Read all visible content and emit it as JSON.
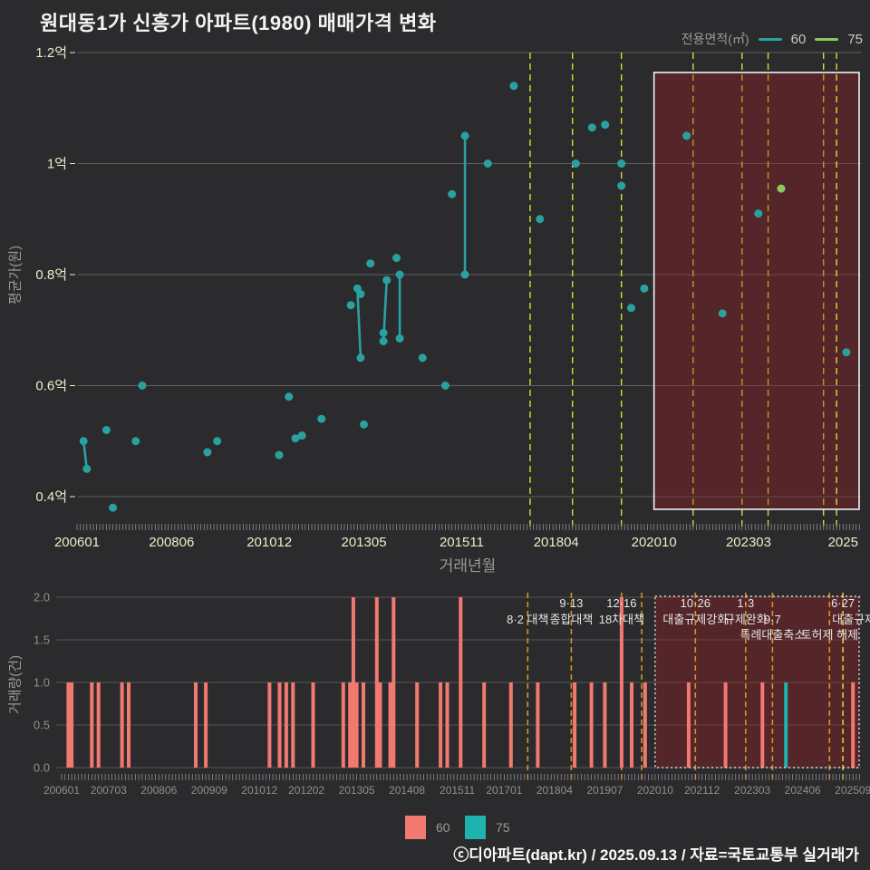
{
  "title": "원대동1가 신흥가 아파트(1980) 매매가격 변화",
  "legend_top": {
    "label": "전용면적(㎡)",
    "items": [
      {
        "name": "60",
        "color": "#2aa1a1"
      },
      {
        "name": "75",
        "color": "#8bc95c"
      }
    ]
  },
  "legend_bottom": {
    "items": [
      {
        "name": "60",
        "color": "#f2796f"
      },
      {
        "name": "75",
        "color": "#1eb3ae"
      }
    ]
  },
  "footer": "ⓒ디아파트(dapt.kr) / 2025.09.13 / 자료=국토교통부 실거래가",
  "chart_data": {
    "price_chart": {
      "type": "scatter",
      "ylabel": "평균가(원)",
      "xlabel": "거래년월",
      "ylim": [
        0.35,
        1.21
      ],
      "unit": "억",
      "grid": true,
      "yticks": [
        {
          "v": 1.2,
          "label": "1.2억"
        },
        {
          "v": 1.0,
          "label": "1억"
        },
        {
          "v": 0.8,
          "label": "0.8억"
        },
        {
          "v": 0.6,
          "label": "0.6억"
        },
        {
          "v": 0.4,
          "label": "0.4억"
        }
      ],
      "xticks": [
        {
          "label": "200601",
          "at": "200601"
        },
        {
          "label": "200806",
          "at": "200806"
        },
        {
          "label": "201012",
          "at": "201012"
        },
        {
          "label": "201305",
          "at": "201305"
        },
        {
          "label": "201511",
          "at": "201511"
        },
        {
          "label": "201804",
          "at": "201804"
        },
        {
          "label": "202010",
          "at": "202010"
        },
        {
          "label": "202303",
          "at": "202303"
        },
        {
          "label": "2025",
          "at": "202508"
        }
      ],
      "series": [
        {
          "name": "60",
          "color": "#2aa1a1",
          "points": [
            [
              "200603",
              0.5
            ],
            [
              "200604",
              0.45
            ],
            [
              "200610",
              0.52
            ],
            [
              "200612",
              0.38
            ],
            [
              "200707",
              0.5
            ],
            [
              "200709",
              0.6
            ],
            [
              "200905",
              0.48
            ],
            [
              "200908",
              0.5
            ],
            [
              "201103",
              0.475
            ],
            [
              "201106",
              0.58
            ],
            [
              "201108",
              0.505
            ],
            [
              "201110",
              0.51
            ],
            [
              "201204",
              0.54
            ],
            [
              "201301",
              0.745
            ],
            [
              "201303",
              0.775
            ],
            [
              "201304",
              0.65
            ],
            [
              "201304",
              0.765
            ],
            [
              "201305",
              0.53
            ],
            [
              "201307",
              0.82
            ],
            [
              "201311",
              0.695
            ],
            [
              "201311",
              0.68
            ],
            [
              "201312",
              0.79
            ],
            [
              "201403",
              0.83
            ],
            [
              "201404",
              0.8
            ],
            [
              "201404",
              0.685
            ],
            [
              "201411",
              0.65
            ],
            [
              "201506",
              0.6
            ],
            [
              "201508",
              0.945
            ],
            [
              "201512",
              1.05
            ],
            [
              "201512",
              0.8
            ],
            [
              "201607",
              1.0
            ],
            [
              "201703",
              1.14
            ],
            [
              "201711",
              0.9
            ],
            [
              "201810",
              1.0
            ],
            [
              "201903",
              1.065
            ],
            [
              "201907",
              1.07
            ],
            [
              "201912",
              0.96
            ],
            [
              "201912",
              1.0
            ],
            [
              "202003",
              0.74
            ],
            [
              "202007",
              0.775
            ],
            [
              "202108",
              1.05
            ],
            [
              "202207",
              0.73
            ],
            [
              "202306",
              0.91
            ],
            [
              "202509",
              0.66
            ]
          ]
        },
        {
          "name": "75",
          "color": "#8bc95c",
          "points": [
            [
              "202401",
              0.955
            ]
          ]
        }
      ],
      "segments": [
        [
          "200603",
          0.5,
          "200604",
          0.45
        ],
        [
          "201303",
          0.775,
          "201304",
          0.65
        ],
        [
          "201312",
          0.79,
          "201311",
          0.68
        ],
        [
          "201404",
          0.8,
          "201404",
          0.685
        ],
        [
          "201512",
          1.05,
          "201512",
          0.8
        ]
      ]
    },
    "volume_chart": {
      "type": "bar",
      "ylabel": "거래량(건)",
      "ylim": [
        0,
        2
      ],
      "yticks": [
        "0.0",
        "0.5",
        "1.0",
        "1.5",
        "2.0"
      ],
      "xticks": [
        "200601",
        "200703",
        "200806",
        "200909",
        "201012",
        "201202",
        "201305",
        "201408",
        "201511",
        "201701",
        "201804",
        "201907",
        "202010",
        "202112",
        "202303",
        "202406",
        "202509"
      ],
      "bars": [
        [
          "200603",
          1
        ],
        [
          "200604",
          1
        ],
        [
          "200610",
          1
        ],
        [
          "200612",
          1
        ],
        [
          "200707",
          1
        ],
        [
          "200709",
          1
        ],
        [
          "200905",
          1
        ],
        [
          "200908",
          1
        ],
        [
          "201103",
          1
        ],
        [
          "201106",
          1
        ],
        [
          "201108",
          1
        ],
        [
          "201110",
          1
        ],
        [
          "201204",
          1
        ],
        [
          "201301",
          1
        ],
        [
          "201303",
          1
        ],
        [
          "201304",
          2
        ],
        [
          "201305",
          1
        ],
        [
          "201307",
          1
        ],
        [
          "201311",
          2
        ],
        [
          "201312",
          1
        ],
        [
          "201403",
          1
        ],
        [
          "201404",
          2
        ],
        [
          "201411",
          1
        ],
        [
          "201506",
          1
        ],
        [
          "201508",
          1
        ],
        [
          "201512",
          2
        ],
        [
          "201607",
          1
        ],
        [
          "201703",
          1
        ],
        [
          "201711",
          1
        ],
        [
          "201810",
          1
        ],
        [
          "201903",
          1
        ],
        [
          "201907",
          1
        ],
        [
          "201912",
          2
        ],
        [
          "202003",
          1
        ],
        [
          "202007",
          1
        ],
        [
          "202108",
          1
        ],
        [
          "202207",
          1
        ],
        [
          "202306",
          1
        ],
        [
          "202401",
          1,
          "75"
        ],
        [
          "202509",
          1
        ]
      ]
    },
    "policies": [
      {
        "date": "201708",
        "row2": "8·2 대책"
      },
      {
        "date": "201809",
        "row1": "9·13",
        "row2": "종합대책"
      },
      {
        "date": "201912",
        "row1": "12·16",
        "row2": "18차대책"
      },
      {
        "date": "202006",
        "hide_top": true
      },
      {
        "date": "202110",
        "row1": "10·26",
        "row2": "대출규제강화"
      },
      {
        "date": "202301",
        "row1": "1·3",
        "row2": "규제완화"
      },
      {
        "date": "202309",
        "row2": "9·7",
        "row3": "특례대출축소"
      },
      {
        "date": "202502",
        "row3": "토허제 해제"
      },
      {
        "date": "202506",
        "row1": "6·27",
        "row2": "대출규제",
        "bright": true,
        "dx": 12
      }
    ],
    "highlight_box": {
      "from": "202010"
    },
    "colors": {
      "dashed_top": "#dcdc30",
      "dashed_bottom": "#d29422",
      "dashed_bright": "#d8d232",
      "box_fill": "rgba(158,28,36,0.36)",
      "box_border_top": "#f2f2f2",
      "box_border_bottom": "#d8d8d8",
      "grid_top": "#8a8a8a",
      "grid_bottom": "#565656",
      "tick": "#8f8f8f",
      "axis_label_top": "#ececc6",
      "axis_label_bottom": "#8f8f8f",
      "annotation": "#e6e6e6"
    }
  }
}
